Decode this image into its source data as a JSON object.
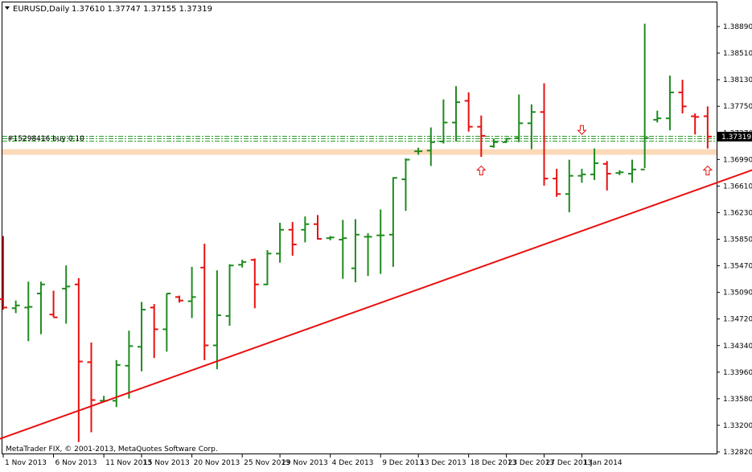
{
  "header": {
    "symbol_label": "EURUSD,Daily",
    "ohlc": "1.37610 1.37747 1.37155 1.37319"
  },
  "order_label": "#15298416 buy 0.10",
  "price_tag": "1.37319",
  "watermark": "MetaTrader FIX, © 2001-2013, MetaQuotes Software Corp.",
  "colors": {
    "bull": "#1f8a1f",
    "bear": "#e81010",
    "trendline": "#e81010",
    "zone": "#fcd9b8",
    "order_line": "#2e9e2e",
    "price_tag_bg": "#000000",
    "arrow": "#e81010"
  },
  "chart_data": {
    "type": "ohlc",
    "title": "EURUSD,Daily",
    "y_ticks": [
      "1.38890",
      "1.38510",
      "1.38130",
      "1.37750",
      "1.37370",
      "1.36990",
      "1.36610",
      "1.36230",
      "1.35850",
      "1.35470",
      "1.35090",
      "1.34720",
      "1.34340",
      "1.33960",
      "1.33580",
      "1.33200",
      "1.32820"
    ],
    "x_ticks": [
      "1 Nov 2013",
      "6 Nov 2013",
      "11 Nov 2013",
      "15 Nov 2013",
      "20 Nov 2013",
      "25 Nov 2013",
      "29 Nov 2013",
      "4 Dec 2013",
      "9 Dec 2013",
      "13 Dec 2013",
      "18 Dec 2013",
      "23 Dec 2013",
      "27 Dec 2013",
      "1 Jan 2014"
    ],
    "ylim": [
      1.3282,
      1.3929
    ],
    "current_price": 1.37319,
    "order_price": 1.3729,
    "support_zone": [
      1.3706,
      1.3714
    ],
    "trendline": [
      {
        "i": -1,
        "p": 1.3296
      },
      {
        "i": 67,
        "p": 1.3732
      }
    ],
    "bars": [
      {
        "o": 1.35,
        "h": 1.359,
        "l": 1.3485,
        "c": 1.3488
      },
      {
        "o": 1.3487,
        "h": 1.3498,
        "l": 1.348,
        "c": 1.3491
      },
      {
        "o": 1.3488,
        "h": 1.3525,
        "l": 1.344,
        "c": 1.3489
      },
      {
        "o": 1.3508,
        "h": 1.3525,
        "l": 1.345,
        "c": 1.3521
      },
      {
        "o": 1.3478,
        "h": 1.3512,
        "l": 1.3474,
        "c": 1.3474
      },
      {
        "o": 1.3515,
        "h": 1.3548,
        "l": 1.3465,
        "c": 1.3518
      },
      {
        "o": 1.3521,
        "h": 1.353,
        "l": 1.3296,
        "c": 1.3411
      },
      {
        "o": 1.341,
        "h": 1.3438,
        "l": 1.331,
        "c": 1.3356
      },
      {
        "o": 1.3355,
        "h": 1.3362,
        "l": 1.3354,
        "c": 1.3355
      },
      {
        "o": 1.3355,
        "h": 1.3413,
        "l": 1.3346,
        "c": 1.3406
      },
      {
        "o": 1.3405,
        "h": 1.3455,
        "l": 1.3358,
        "c": 1.3433
      },
      {
        "o": 1.3432,
        "h": 1.3496,
        "l": 1.3397,
        "c": 1.3485
      },
      {
        "o": 1.3488,
        "h": 1.3493,
        "l": 1.3416,
        "c": 1.3457
      },
      {
        "o": 1.3457,
        "h": 1.3508,
        "l": 1.3425,
        "c": 1.3508
      },
      {
        "o": 1.3503,
        "h": 1.3505,
        "l": 1.3495,
        "c": 1.3498
      },
      {
        "o": 1.3497,
        "h": 1.3546,
        "l": 1.3473,
        "c": 1.3503
      },
      {
        "o": 1.3545,
        "h": 1.3579,
        "l": 1.3413,
        "c": 1.3434
      },
      {
        "o": 1.3434,
        "h": 1.3541,
        "l": 1.34,
        "c": 1.3477
      },
      {
        "o": 1.3476,
        "h": 1.355,
        "l": 1.3462,
        "c": 1.3548
      },
      {
        "o": 1.3549,
        "h": 1.3556,
        "l": 1.3545,
        "c": 1.3553
      },
      {
        "o": 1.3556,
        "h": 1.3558,
        "l": 1.3487,
        "c": 1.3521
      },
      {
        "o": 1.3521,
        "h": 1.357,
        "l": 1.352,
        "c": 1.3565
      },
      {
        "o": 1.3565,
        "h": 1.3609,
        "l": 1.3552,
        "c": 1.3599
      },
      {
        "o": 1.3599,
        "h": 1.361,
        "l": 1.3562,
        "c": 1.3578
      },
      {
        "o": 1.3599,
        "h": 1.3618,
        "l": 1.3581,
        "c": 1.3607
      },
      {
        "o": 1.3607,
        "h": 1.362,
        "l": 1.3585,
        "c": 1.3586
      },
      {
        "o": 1.3587,
        "h": 1.359,
        "l": 1.3584,
        "c": 1.3588
      },
      {
        "o": 1.3585,
        "h": 1.3613,
        "l": 1.3529,
        "c": 1.3587
      },
      {
        "o": 1.3544,
        "h": 1.3614,
        "l": 1.3524,
        "c": 1.3592
      },
      {
        "o": 1.3589,
        "h": 1.3594,
        "l": 1.3533,
        "c": 1.3589
      },
      {
        "o": 1.3591,
        "h": 1.3628,
        "l": 1.3536,
        "c": 1.3591
      },
      {
        "o": 1.3592,
        "h": 1.3674,
        "l": 1.3546,
        "c": 1.3673
      },
      {
        "o": 1.3671,
        "h": 1.3701,
        "l": 1.3626,
        "c": 1.3699
      },
      {
        "o": 1.3711,
        "h": 1.3716,
        "l": 1.3706,
        "c": 1.3711
      },
      {
        "o": 1.3712,
        "h": 1.3745,
        "l": 1.369,
        "c": 1.3724
      },
      {
        "o": 1.3725,
        "h": 1.3785,
        "l": 1.3722,
        "c": 1.3752
      },
      {
        "o": 1.3752,
        "h": 1.3804,
        "l": 1.3725,
        "c": 1.3781
      },
      {
        "o": 1.3783,
        "h": 1.3795,
        "l": 1.3739,
        "c": 1.3746
      },
      {
        "o": 1.3746,
        "h": 1.3762,
        "l": 1.3703,
        "c": 1.3733
      },
      {
        "o": 1.3718,
        "h": 1.3729,
        "l": 1.3716,
        "c": 1.3724
      },
      {
        "o": 1.3724,
        "h": 1.373,
        "l": 1.3723,
        "c": 1.3729
      },
      {
        "o": 1.373,
        "h": 1.3792,
        "l": 1.3724,
        "c": 1.3751
      },
      {
        "o": 1.3751,
        "h": 1.3778,
        "l": 1.3714,
        "c": 1.3767
      },
      {
        "o": 1.3767,
        "h": 1.3808,
        "l": 1.3662,
        "c": 1.3672
      },
      {
        "o": 1.3672,
        "h": 1.3686,
        "l": 1.3646,
        "c": 1.365
      },
      {
        "o": 1.365,
        "h": 1.3699,
        "l": 1.3624,
        "c": 1.3676
      },
      {
        "o": 1.3676,
        "h": 1.3686,
        "l": 1.3666,
        "c": 1.3678
      },
      {
        "o": 1.3678,
        "h": 1.3715,
        "l": 1.367,
        "c": 1.3694
      },
      {
        "o": 1.3693,
        "h": 1.3697,
        "l": 1.3655,
        "c": 1.3679
      },
      {
        "o": 1.368,
        "h": 1.3684,
        "l": 1.3677,
        "c": 1.3681
      },
      {
        "o": 1.3679,
        "h": 1.3699,
        "l": 1.3666,
        "c": 1.3685
      },
      {
        "o": 1.3685,
        "h": 1.3893,
        "l": 1.3687,
        "c": 1.373
      },
      {
        "o": 1.3756,
        "h": 1.3769,
        "l": 1.3752,
        "c": 1.3758
      },
      {
        "o": 1.3758,
        "h": 1.3819,
        "l": 1.3741,
        "c": 1.3795
      },
      {
        "o": 1.3795,
        "h": 1.3813,
        "l": 1.3765,
        "c": 1.3775
      },
      {
        "o": 1.3761,
        "h": 1.3765,
        "l": 1.3735,
        "c": 1.376
      },
      {
        "o": 1.3761,
        "h": 1.3775,
        "l": 1.3715,
        "c": 1.3732
      }
    ],
    "arrows": [
      {
        "bar": 46,
        "dir": "down",
        "p": 1.3742
      },
      {
        "bar": 38,
        "dir": "up",
        "p": 1.3683
      },
      {
        "bar": 56,
        "dir": "up",
        "p": 1.3683
      }
    ]
  }
}
